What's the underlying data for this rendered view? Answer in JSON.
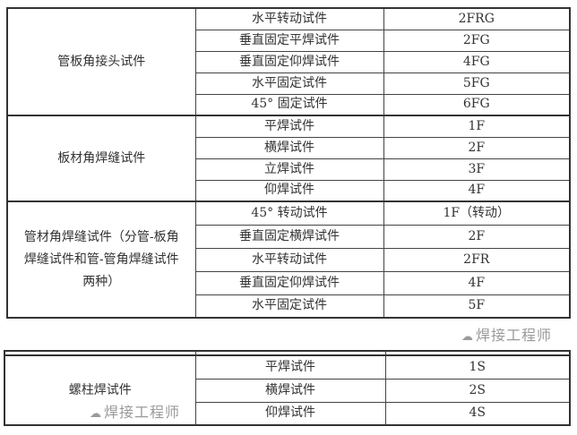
{
  "table1": {
    "groups": [
      {
        "category": "管板角接头试件",
        "rows": [
          {
            "item": "水平转动试件",
            "code": "2FRG"
          },
          {
            "item": "垂直固定平焊试件",
            "code": "2FG"
          },
          {
            "item": "垂直固定仰焊试件",
            "code": "4FG"
          },
          {
            "item": "水平固定试件",
            "code": "5FG"
          },
          {
            "item": "45° 固定试件",
            "code": "6FG"
          }
        ]
      },
      {
        "category": "板材角焊缝试件",
        "rows": [
          {
            "item": "平焊试件",
            "code": "1F"
          },
          {
            "item": "横焊试件",
            "code": "2F"
          },
          {
            "item": "立焊试件",
            "code": "3F"
          },
          {
            "item": "仰焊试件",
            "code": "4F"
          }
        ]
      },
      {
        "category": "管材角焊缝试件（分管-板角焊缝试件和管-管角焊缝试件两种）",
        "rows": [
          {
            "item": "45° 转动试件",
            "code": "1F（转动）"
          },
          {
            "item": "垂直固定横焊试件",
            "code": "2F"
          },
          {
            "item": "水平转动试件",
            "code": "2FR"
          },
          {
            "item": "垂直固定仰焊试件",
            "code": "4F"
          },
          {
            "item": "水平固定试件",
            "code": "5F"
          }
        ]
      }
    ]
  },
  "table2": {
    "groups": [
      {
        "category": "螺柱焊试件",
        "rows": [
          {
            "item": "平焊试件",
            "code": "1S"
          },
          {
            "item": "横焊试件",
            "code": "2S"
          },
          {
            "item": "仰焊试件",
            "code": "4S"
          }
        ]
      }
    ]
  },
  "watermark": "焊接工程师"
}
